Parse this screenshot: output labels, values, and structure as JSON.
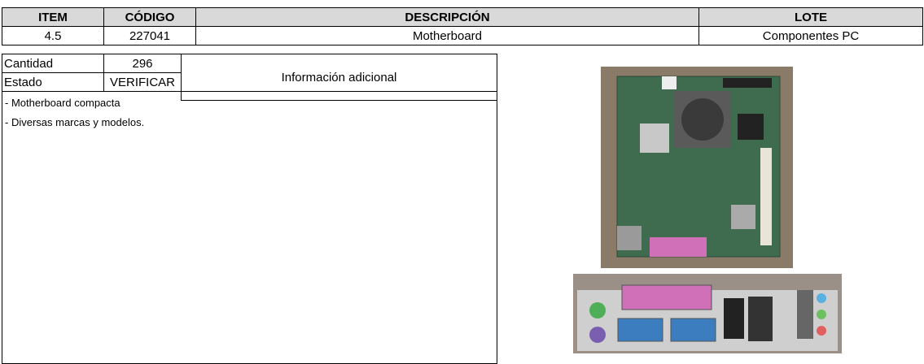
{
  "header": {
    "item": "ITEM",
    "codigo": "CÓDIGO",
    "descripcion": "DESCRIPCIÓN",
    "lote": "LOTE"
  },
  "row": {
    "item": "4.5",
    "codigo": "227041",
    "descripcion": "Motherboard",
    "lote": "Componentes PC"
  },
  "details": {
    "cantidad_label": "Cantidad",
    "cantidad": "296",
    "estado_label": "Estado",
    "estado": "VERIFICAR",
    "info_label": "Información adicional",
    "notes": [
      "- Motherboard compacta",
      "- Diversas marcas y modelos."
    ]
  }
}
